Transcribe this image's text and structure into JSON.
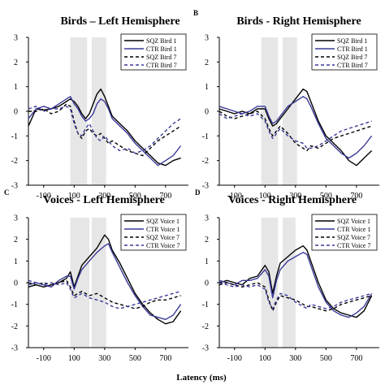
{
  "figure": {
    "xlabel": "Latency (ms)"
  },
  "chart_data": [
    {
      "type": "line",
      "letter": "",
      "title": "Birds – Left Hemisphere",
      "xlim": [
        -200,
        850
      ],
      "ylim": [
        -3,
        3
      ],
      "xticks": [
        "-100",
        "100",
        "300",
        "500",
        "700"
      ],
      "yticks": [
        "3",
        "2",
        "1",
        "0",
        "-1",
        "-2",
        "-3"
      ],
      "shaded": [
        [
          75,
          185
        ],
        [
          215,
          310
        ]
      ],
      "legend_position": "top-right",
      "series": [
        {
          "name": "SQZ Bird 1",
          "color": "#000000",
          "dash": "solid",
          "x": [
            -200,
            -150,
            -100,
            -50,
            0,
            50,
            75,
            100,
            125,
            150,
            175,
            200,
            225,
            250,
            275,
            300,
            325,
            350,
            400,
            450,
            500,
            550,
            600,
            650,
            700,
            750,
            800
          ],
          "y": [
            -0.6,
            0.1,
            0.05,
            0.1,
            0.2,
            0.4,
            0.5,
            0.4,
            0.2,
            -0.1,
            -0.3,
            -0.1,
            0.3,
            0.7,
            0.9,
            0.6,
            0.2,
            -0.2,
            -0.5,
            -0.8,
            -1.2,
            -1.5,
            -1.8,
            -2.1,
            -2.2,
            -2.0,
            -1.9
          ]
        },
        {
          "name": "CTR Bird 1",
          "color": "#3a3a9a",
          "dash": "solid",
          "x": [
            -200,
            -150,
            -100,
            -50,
            0,
            50,
            75,
            100,
            125,
            150,
            175,
            200,
            225,
            250,
            275,
            300,
            325,
            350,
            400,
            450,
            500,
            550,
            600,
            650,
            700,
            750,
            800
          ],
          "y": [
            -0.3,
            0.1,
            0.2,
            0.1,
            0.3,
            0.5,
            0.6,
            0.3,
            0.1,
            -0.2,
            -0.4,
            -0.3,
            -0.1,
            0.3,
            0.5,
            0.4,
            0.1,
            -0.3,
            -0.6,
            -0.9,
            -1.3,
            -1.6,
            -1.9,
            -2.2,
            -2.0,
            -1.8,
            -1.4
          ]
        },
        {
          "name": "SQZ Bird 7",
          "color": "#000000",
          "dash": "4,3",
          "x": [
            -200,
            -150,
            -100,
            -50,
            0,
            50,
            75,
            100,
            125,
            150,
            175,
            200,
            225,
            250,
            275,
            300,
            325,
            350,
            400,
            450,
            500,
            550,
            600,
            650,
            700,
            750,
            800
          ],
          "y": [
            0.0,
            0.0,
            0.1,
            -0.1,
            0.0,
            0.3,
            0.2,
            -0.4,
            -0.9,
            -1.1,
            -0.8,
            -0.7,
            -0.9,
            -1.0,
            -0.9,
            -1.1,
            -1.3,
            -1.2,
            -1.4,
            -1.6,
            -1.7,
            -1.8,
            -1.5,
            -1.2,
            -1.0,
            -0.8,
            -0.6
          ]
        },
        {
          "name": "CTR Bird 7",
          "color": "#3a3a9a",
          "dash": "4,3",
          "x": [
            -200,
            -150,
            -100,
            -50,
            0,
            50,
            75,
            100,
            125,
            150,
            175,
            200,
            225,
            250,
            275,
            300,
            325,
            350,
            400,
            450,
            500,
            550,
            600,
            650,
            700,
            750,
            800
          ],
          "y": [
            0.1,
            0.2,
            0.0,
            0.1,
            0.1,
            0.2,
            0.1,
            -0.5,
            -0.9,
            -1.0,
            -0.7,
            -0.5,
            -0.8,
            -1.1,
            -1.2,
            -1.0,
            -1.2,
            -1.4,
            -1.6,
            -1.5,
            -1.7,
            -1.6,
            -1.4,
            -1.1,
            -0.8,
            -0.5,
            -0.3
          ]
        }
      ]
    },
    {
      "type": "line",
      "letter": "B",
      "title": "Birds - Right Hemisphere",
      "xlim": [
        -200,
        850
      ],
      "ylim": [
        -3,
        3
      ],
      "xticks": [
        "-100",
        "100",
        "300",
        "500",
        "700"
      ],
      "yticks": [
        "3",
        "2",
        "1",
        "0",
        "-1",
        "-2",
        "-3"
      ],
      "shaded": [
        [
          75,
          185
        ],
        [
          215,
          310
        ]
      ],
      "legend_position": "top-right",
      "series": [
        {
          "name": "SQZ Bird 1",
          "color": "#000000",
          "dash": "solid",
          "x": [
            -200,
            -150,
            -100,
            -50,
            0,
            50,
            100,
            125,
            150,
            175,
            200,
            250,
            300,
            350,
            375,
            400,
            450,
            500,
            550,
            600,
            650,
            700,
            750,
            800
          ],
          "y": [
            0.1,
            0.0,
            -0.1,
            0.0,
            -0.1,
            0.1,
            0.1,
            -0.3,
            -0.6,
            -0.5,
            -0.3,
            0.1,
            0.5,
            0.9,
            0.8,
            0.4,
            -0.4,
            -1.0,
            -1.3,
            -1.6,
            -2.0,
            -2.2,
            -1.9,
            -1.6
          ]
        },
        {
          "name": "CTR Bird 1",
          "color": "#3a3a9a",
          "dash": "solid",
          "x": [
            -200,
            -150,
            -100,
            -50,
            0,
            50,
            100,
            125,
            150,
            175,
            200,
            250,
            300,
            350,
            375,
            400,
            450,
            500,
            550,
            600,
            650,
            700,
            750,
            800
          ],
          "y": [
            0.2,
            0.1,
            0.0,
            -0.1,
            0.0,
            0.2,
            0.2,
            -0.2,
            -0.5,
            -0.4,
            -0.2,
            0.2,
            0.4,
            0.6,
            0.5,
            0.2,
            -0.5,
            -1.1,
            -1.4,
            -1.7,
            -1.9,
            -1.7,
            -1.4,
            -1.0
          ]
        },
        {
          "name": "SQZ Bird 7",
          "color": "#000000",
          "dash": "4,3",
          "x": [
            -200,
            -150,
            -100,
            -50,
            0,
            50,
            100,
            125,
            150,
            175,
            200,
            250,
            300,
            350,
            375,
            400,
            450,
            500,
            550,
            600,
            650,
            700,
            750,
            800
          ],
          "y": [
            0.0,
            -0.2,
            -0.3,
            -0.2,
            -0.1,
            0.0,
            -0.3,
            -0.7,
            -1.0,
            -0.8,
            -0.6,
            -0.9,
            -1.3,
            -1.5,
            -1.6,
            -1.4,
            -1.5,
            -1.3,
            -1.1,
            -1.0,
            -0.9,
            -0.8,
            -0.7,
            -0.6
          ]
        },
        {
          "name": "CTR Bird 7",
          "color": "#3a3a9a",
          "dash": "4,3",
          "x": [
            -200,
            -150,
            -100,
            -50,
            0,
            50,
            100,
            125,
            150,
            175,
            200,
            250,
            300,
            350,
            375,
            400,
            450,
            500,
            550,
            600,
            650,
            700,
            750,
            800
          ],
          "y": [
            -0.1,
            -0.3,
            -0.2,
            -0.1,
            -0.2,
            -0.1,
            -0.4,
            -0.8,
            -1.1,
            -0.9,
            -0.7,
            -1.0,
            -1.2,
            -1.3,
            -1.5,
            -1.5,
            -1.4,
            -1.2,
            -1.0,
            -0.8,
            -0.7,
            -0.6,
            -0.5,
            -0.4
          ]
        }
      ]
    },
    {
      "type": "line",
      "letter": "C",
      "title": "Voices - Left Hemisphere",
      "xlim": [
        -200,
        850
      ],
      "ylim": [
        -3,
        3
      ],
      "xticks": [
        "-100",
        "100",
        "300",
        "500",
        "700"
      ],
      "yticks": [
        "3",
        "2",
        "1",
        "0",
        "-1",
        "-2",
        "-3"
      ],
      "shaded": [
        [
          75,
          200
        ],
        [
          215,
          310
        ]
      ],
      "legend_position": "top-right",
      "series": [
        {
          "name": "SQZ Voice 1",
          "color": "#000000",
          "dash": "solid",
          "x": [
            -200,
            -150,
            -100,
            -50,
            0,
            50,
            75,
            100,
            125,
            150,
            200,
            250,
            300,
            325,
            350,
            400,
            450,
            500,
            550,
            600,
            650,
            700,
            750,
            800
          ],
          "y": [
            -0.2,
            -0.1,
            -0.2,
            -0.1,
            0.0,
            0.2,
            0.5,
            -0.2,
            0.3,
            0.8,
            1.2,
            1.6,
            2.2,
            2.0,
            1.5,
            0.9,
            0.2,
            -0.5,
            -1.0,
            -1.4,
            -1.7,
            -1.9,
            -1.8,
            -1.3
          ]
        },
        {
          "name": "CTR Voice 1",
          "color": "#3a3a9a",
          "dash": "solid",
          "x": [
            -200,
            -150,
            -100,
            -50,
            0,
            50,
            75,
            100,
            125,
            150,
            200,
            250,
            300,
            325,
            350,
            400,
            450,
            500,
            550,
            600,
            650,
            700,
            750,
            800
          ],
          "y": [
            -0.1,
            0.0,
            -0.1,
            -0.2,
            0.1,
            0.3,
            0.3,
            -0.3,
            0.2,
            0.6,
            1.0,
            1.4,
            1.7,
            1.8,
            1.4,
            0.7,
            0.0,
            -0.6,
            -1.1,
            -1.5,
            -1.6,
            -1.7,
            -1.5,
            -1.0
          ]
        },
        {
          "name": "SQZ Voice 7",
          "color": "#000000",
          "dash": "4,3",
          "x": [
            -200,
            -150,
            -100,
            -50,
            0,
            50,
            75,
            100,
            125,
            150,
            200,
            250,
            300,
            325,
            350,
            400,
            450,
            500,
            550,
            600,
            650,
            700,
            750,
            800
          ],
          "y": [
            0.0,
            -0.1,
            0.0,
            -0.1,
            0.0,
            0.1,
            -0.2,
            -0.6,
            -0.5,
            -0.4,
            -0.6,
            -0.5,
            -0.7,
            -0.8,
            -0.9,
            -1.0,
            -1.1,
            -1.2,
            -1.1,
            -0.9,
            -0.8,
            -0.8,
            -0.7,
            -0.6
          ]
        },
        {
          "name": "CTR Voice 7",
          "color": "#3a3a9a",
          "dash": "4,3",
          "x": [
            -200,
            -150,
            -100,
            -50,
            0,
            50,
            75,
            100,
            125,
            150,
            200,
            250,
            300,
            325,
            350,
            400,
            450,
            500,
            550,
            600,
            650,
            700,
            750,
            800
          ],
          "y": [
            0.1,
            0.0,
            -0.1,
            0.0,
            -0.1,
            0.0,
            -0.3,
            -0.7,
            -0.6,
            -0.5,
            -0.7,
            -0.8,
            -0.9,
            -1.0,
            -1.1,
            -1.2,
            -1.1,
            -1.0,
            -0.9,
            -0.8,
            -0.7,
            -0.6,
            -0.5,
            -0.4
          ]
        }
      ]
    },
    {
      "type": "line",
      "letter": "D",
      "title": "Voices - Right Hemisphere",
      "xlim": [
        -200,
        850
      ],
      "ylim": [
        -3,
        3
      ],
      "xticks": [
        "-100",
        "100",
        "300",
        "500",
        "700"
      ],
      "yticks": [
        "3",
        "2",
        "1",
        "0",
        "-1",
        "-2",
        "-3"
      ],
      "shaded": [
        [
          75,
          185
        ],
        [
          215,
          300
        ]
      ],
      "legend_position": "top-right",
      "series": [
        {
          "name": "SQZ Voice 1",
          "color": "#000000",
          "dash": "solid",
          "x": [
            -200,
            -150,
            -100,
            -50,
            0,
            50,
            100,
            125,
            150,
            175,
            200,
            250,
            300,
            350,
            375,
            400,
            450,
            500,
            550,
            600,
            650,
            700,
            750,
            800
          ],
          "y": [
            0.0,
            0.1,
            0.0,
            -0.1,
            0.2,
            0.3,
            0.8,
            0.5,
            -0.5,
            0.3,
            0.9,
            1.2,
            1.5,
            1.7,
            1.5,
            1.0,
            0.0,
            -0.8,
            -1.2,
            -1.4,
            -1.5,
            -1.6,
            -1.3,
            -0.6
          ]
        },
        {
          "name": "CTR Voice 1",
          "color": "#3a3a9a",
          "dash": "solid",
          "x": [
            -200,
            -150,
            -100,
            -50,
            0,
            50,
            100,
            125,
            150,
            175,
            200,
            250,
            300,
            350,
            375,
            400,
            450,
            500,
            550,
            600,
            650,
            700,
            750,
            800
          ],
          "y": [
            0.1,
            0.0,
            -0.1,
            0.1,
            0.1,
            0.2,
            0.6,
            0.3,
            -0.7,
            0.1,
            0.6,
            1.0,
            1.2,
            1.4,
            1.3,
            0.8,
            -0.2,
            -0.9,
            -1.3,
            -1.5,
            -1.6,
            -1.4,
            -1.1,
            -0.5
          ]
        },
        {
          "name": "SQZ Voice 7",
          "color": "#000000",
          "dash": "4,3",
          "x": [
            -200,
            -150,
            -100,
            -50,
            0,
            50,
            100,
            125,
            150,
            175,
            200,
            250,
            300,
            350,
            375,
            400,
            450,
            500,
            550,
            600,
            650,
            700,
            750,
            800
          ],
          "y": [
            -0.1,
            0.0,
            -0.1,
            -0.2,
            -0.1,
            0.0,
            -0.2,
            -0.8,
            -1.3,
            -0.9,
            -0.6,
            -0.7,
            -0.8,
            -1.0,
            -1.1,
            -1.1,
            -1.2,
            -1.3,
            -1.2,
            -1.0,
            -0.9,
            -0.8,
            -0.7,
            -0.6
          ]
        },
        {
          "name": "CTR Voice 7",
          "color": "#3a3a9a",
          "dash": "4,3",
          "x": [
            -200,
            -150,
            -100,
            -50,
            0,
            50,
            100,
            125,
            150,
            175,
            200,
            250,
            300,
            350,
            375,
            400,
            450,
            500,
            550,
            600,
            650,
            700,
            750,
            800
          ],
          "y": [
            0.0,
            -0.1,
            -0.2,
            -0.1,
            -0.2,
            -0.1,
            -0.3,
            -0.9,
            -1.2,
            -0.8,
            -0.5,
            -0.6,
            -0.9,
            -1.1,
            -1.2,
            -1.0,
            -1.1,
            -1.2,
            -1.1,
            -0.9,
            -0.8,
            -0.7,
            -0.6,
            -0.5
          ]
        }
      ]
    }
  ]
}
